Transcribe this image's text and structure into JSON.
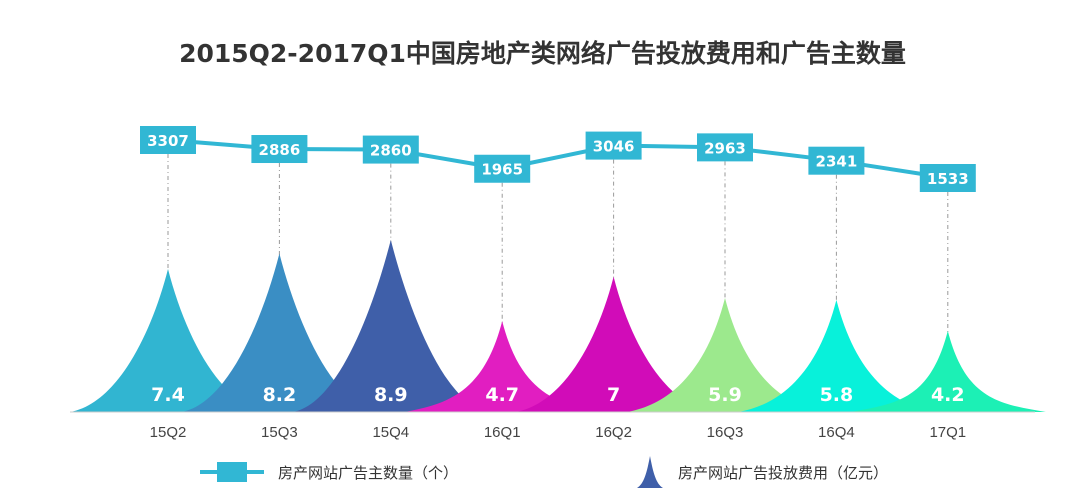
{
  "title": "2015Q2-2017Q1中国房地产类网络广告投放费用和广告主数量",
  "legend": {
    "line_label": "房产网站广告主数量（个）",
    "peak_label": "房产网站广告投放费用（亿元）",
    "line_icon": "line-with-box-icon",
    "peak_icon": "peak-shape-icon"
  },
  "colors": {
    "line": "#31b7d4",
    "box": "#31b7d4",
    "title": "#333333",
    "axis_label": "#444444",
    "peak_palette": [
      "#31b5d1",
      "#3a8ec4",
      "#3f5fa9",
      "#e11ec1",
      "#d10cb8",
      "#9ce98d",
      "#08f1da",
      "#1cf0b5"
    ]
  },
  "chart_data": {
    "type": "line+area",
    "title": "2015Q2-2017Q1中国房地产类网络广告投放费用和广告主数量",
    "categories": [
      "15Q2",
      "15Q3",
      "15Q4",
      "16Q1",
      "16Q2",
      "16Q3",
      "16Q4",
      "17Q1"
    ],
    "series": [
      {
        "name": "房产网站广告主数量（个）",
        "kind": "line",
        "values": [
          3307,
          2886,
          2860,
          1965,
          3046,
          2963,
          2341,
          1533
        ]
      },
      {
        "name": "房产网站广告投放费用（亿元）",
        "kind": "peak",
        "values": [
          7.4,
          8.2,
          8.9,
          4.7,
          7.0,
          5.9,
          5.8,
          4.2
        ]
      }
    ],
    "grid": false,
    "legend_position": "bottom"
  }
}
